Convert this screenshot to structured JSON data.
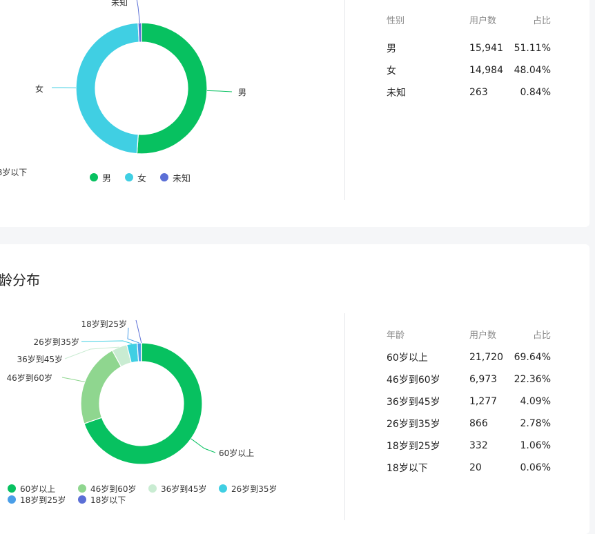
{
  "colors": {
    "green": "#07c160",
    "cyan": "#40cfe3",
    "purple": "#5b6fd6",
    "light_green": "#8fd68f",
    "pale_green": "#c9ecd2",
    "blue": "#4a9ee8"
  },
  "gender": {
    "legend": [
      {
        "label": "男",
        "color": "#07c160"
      },
      {
        "label": "女",
        "color": "#40cfe3"
      },
      {
        "label": "未知",
        "color": "#5b6fd6"
      }
    ],
    "table": {
      "headers": [
        "性别",
        "用户数",
        "占比"
      ],
      "rows": [
        {
          "name": "男",
          "count": "15,941",
          "pct": "51.11%"
        },
        {
          "name": "女",
          "count": "14,984",
          "pct": "48.04%"
        },
        {
          "name": "未知",
          "count": "263",
          "pct": "0.84%"
        }
      ]
    }
  },
  "age": {
    "title": "龄分布",
    "legend": [
      {
        "label": "60岁以上",
        "color": "#07c160"
      },
      {
        "label": "46岁到60岁",
        "color": "#8fd68f"
      },
      {
        "label": "36岁到45岁",
        "color": "#c9ecd2"
      },
      {
        "label": "26岁到35岁",
        "color": "#40cfe3"
      },
      {
        "label": "18岁到25岁",
        "color": "#4a9ee8"
      },
      {
        "label": "18岁以下",
        "color": "#5b6fd6"
      }
    ],
    "table": {
      "headers": [
        "年龄",
        "用户数",
        "占比"
      ],
      "rows": [
        {
          "name": "60岁以上",
          "count": "21,720",
          "pct": "69.64%"
        },
        {
          "name": "46岁到60岁",
          "count": "6,973",
          "pct": "22.36%"
        },
        {
          "name": "36岁到45岁",
          "count": "1,277",
          "pct": "4.09%"
        },
        {
          "name": "26岁到35岁",
          "count": "866",
          "pct": "2.78%"
        },
        {
          "name": "18岁到25岁",
          "count": "332",
          "pct": "1.06%"
        },
        {
          "name": "18岁以下",
          "count": "20",
          "pct": "0.06%"
        }
      ]
    }
  },
  "chart_data": [
    {
      "type": "pie",
      "donut": true,
      "categories": [
        "男",
        "女",
        "未知"
      ],
      "values": [
        15941,
        14984,
        263
      ],
      "colors": [
        "#07c160",
        "#40cfe3",
        "#5b6fd6"
      ],
      "legend": "bottom"
    },
    {
      "type": "pie",
      "donut": true,
      "categories": [
        "60岁以上",
        "46岁到60岁",
        "36岁到45岁",
        "26岁到35岁",
        "18岁到25岁",
        "18岁以下"
      ],
      "values": [
        21720,
        6973,
        1277,
        866,
        332,
        20
      ],
      "colors": [
        "#07c160",
        "#8fd68f",
        "#c9ecd2",
        "#40cfe3",
        "#4a9ee8",
        "#5b6fd6"
      ],
      "legend": "bottom"
    }
  ]
}
